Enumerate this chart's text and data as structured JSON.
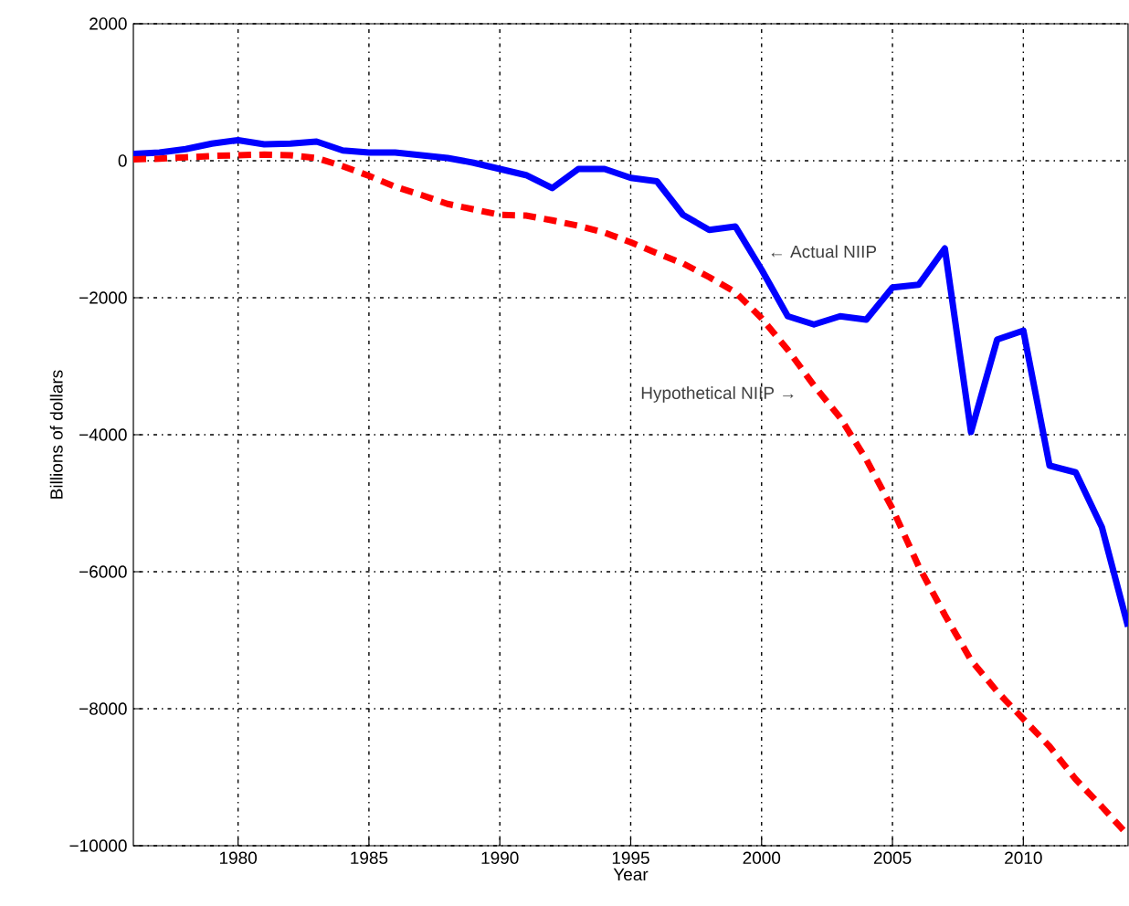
{
  "chart_data": {
    "type": "line",
    "xlabel": "Year",
    "ylabel": "Billions of dollars",
    "x": [
      1976,
      1977,
      1978,
      1979,
      1980,
      1981,
      1982,
      1983,
      1984,
      1985,
      1986,
      1987,
      1988,
      1989,
      1990,
      1991,
      1992,
      1993,
      1994,
      1995,
      1996,
      1997,
      1998,
      1999,
      2000,
      2001,
      2002,
      2003,
      2004,
      2005,
      2006,
      2007,
      2008,
      2009,
      2010,
      2011,
      2012,
      2013,
      2014
    ],
    "series": [
      {
        "color": "#0000ff",
        "line_style": "solid",
        "values": [
          100,
          120,
          170,
          250,
          300,
          240,
          250,
          280,
          150,
          120,
          120,
          80,
          40,
          -30,
          -120,
          -210,
          -400,
          -120,
          -120,
          -250,
          -300,
          -790,
          -1010,
          -960,
          -1590,
          -2270,
          -2390,
          -2270,
          -2320,
          -1850,
          -1810,
          -1280,
          -3960,
          -2610,
          -2480,
          -4450,
          -4550,
          -5350,
          -6800
        ]
      },
      {
        "color": "#ff0000",
        "line_style": "dashed",
        "values": [
          20,
          30,
          50,
          70,
          80,
          90,
          80,
          40,
          -80,
          -220,
          -380,
          -500,
          -630,
          -710,
          -790,
          -800,
          -870,
          -950,
          -1050,
          -1190,
          -1350,
          -1500,
          -1700,
          -1920,
          -2300,
          -2760,
          -3280,
          -3750,
          -4360,
          -5080,
          -5920,
          -6630,
          -7290,
          -7750,
          -8150,
          -8550,
          -9030,
          -9430,
          -9850
        ]
      }
    ],
    "xlim": [
      1976,
      2014
    ],
    "ylim": [
      -10000,
      2000
    ],
    "xticks": [
      1980,
      1985,
      1990,
      1995,
      2000,
      2005,
      2010
    ],
    "yticks": [
      {
        "value": -10000,
        "label": "−10000"
      },
      {
        "value": -8000,
        "label": "−8000"
      },
      {
        "value": -6000,
        "label": "−6000"
      },
      {
        "value": -4000,
        "label": "−4000"
      },
      {
        "value": -2000,
        "label": "−2000"
      },
      0,
      2000
    ],
    "grid": true,
    "marker": "none",
    "annotations": [
      "← Actual NIIP",
      "Hypothetical NIIP →"
    ]
  }
}
